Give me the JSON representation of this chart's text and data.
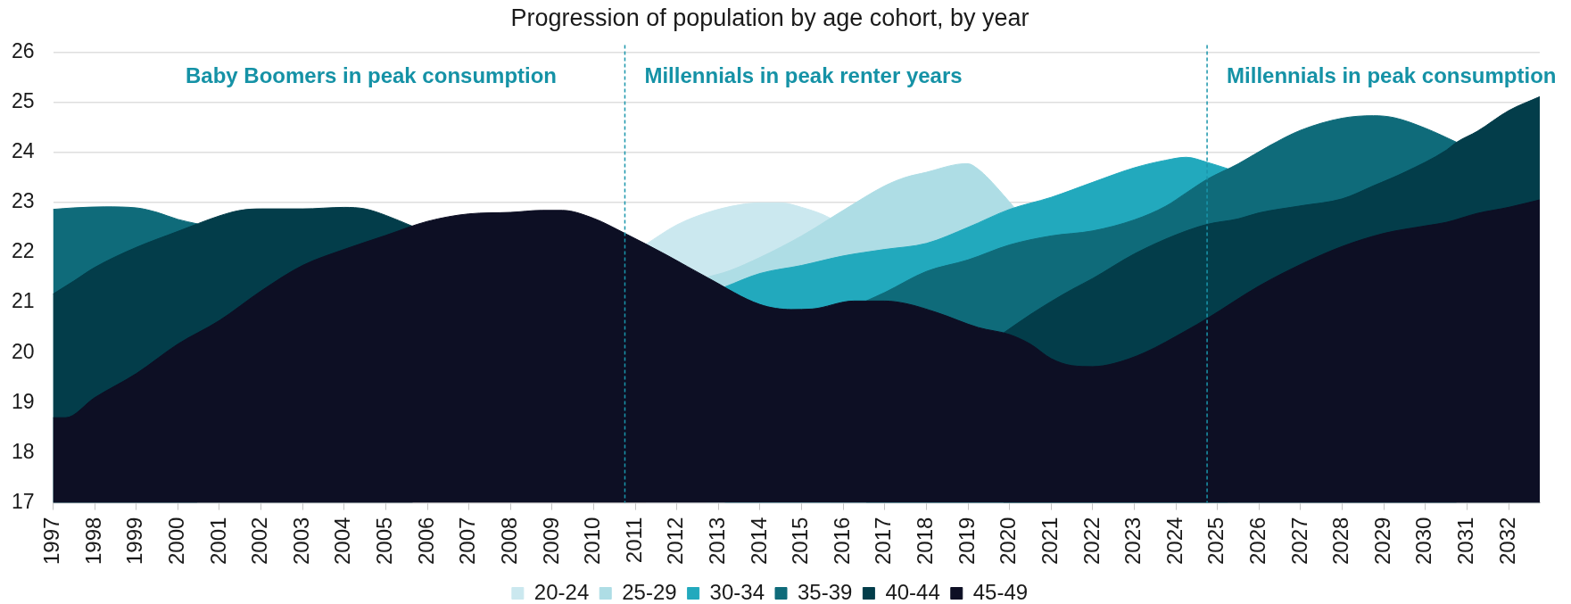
{
  "chart_data": {
    "type": "area",
    "title": "Progression of population by age cohort, by year",
    "xlim": [
      1997,
      2032.75
    ],
    "xticks": [
      1997,
      1998,
      1999,
      2000,
      2001,
      2002,
      2003,
      2004,
      2005,
      2006,
      2007,
      2008,
      2009,
      2010,
      2011,
      2012,
      2013,
      2014,
      2015,
      2016,
      2017,
      2018,
      2019,
      2020,
      2021,
      2022,
      2023,
      2024,
      2025,
      2026,
      2027,
      2028,
      2029,
      2030,
      2031,
      2032
    ],
    "ylim": [
      17,
      26
    ],
    "yticks": [
      17,
      18,
      19,
      20,
      21,
      22,
      23,
      24,
      25,
      26
    ],
    "grid": "y",
    "legend": "bottom",
    "series": [
      {
        "name": "20-24",
        "color": "#cbe8ef",
        "x": [
          2011.25,
          2012,
          2012.75,
          2013.5,
          2014,
          2014.5,
          2015,
          2015.5,
          2015.7
        ],
        "values": [
          22.16,
          22.55,
          22.8,
          22.95,
          22.99,
          22.99,
          22.9,
          22.76,
          22.68
        ]
      },
      {
        "name": "25-29",
        "color": "#aedde5",
        "x": [
          2012.7,
          2013.25,
          2014,
          2015,
          2016,
          2017,
          2017.5,
          2018,
          2018.75,
          2019,
          2019.25,
          2019.5,
          2019.85,
          2020.15
        ],
        "values": [
          21.5,
          21.63,
          21.9,
          22.33,
          22.84,
          23.33,
          23.5,
          23.6,
          23.76,
          23.77,
          23.66,
          23.47,
          23.15,
          22.86
        ]
      },
      {
        "name": "30-34",
        "color": "#22a9bd",
        "x": [
          2013.15,
          2014,
          2015,
          2016,
          2017,
          2018,
          2019,
          2020,
          2021,
          2022,
          2023,
          2023.75,
          2024.25,
          2024.75,
          2025.25
        ],
        "values": [
          21.31,
          21.58,
          21.74,
          21.93,
          22.06,
          22.18,
          22.5,
          22.86,
          23.1,
          23.4,
          23.69,
          23.84,
          23.9,
          23.8,
          23.67
        ]
      },
      {
        "name": "35-39",
        "color": "#0f6b7a",
        "x": [
          1997,
          1997.5,
          1998.25,
          1999,
          1999.5,
          2000,
          2000.47,
          2008,
          2016.55,
          2017,
          2018,
          2019,
          2020,
          2021,
          2022,
          2023,
          2023.75,
          2024.25,
          2024.75,
          2025.5,
          2026.25,
          2027,
          2028,
          2028.75,
          2029.25,
          2030,
          2030.75
        ],
        "values": [
          22.86,
          22.89,
          22.91,
          22.89,
          22.8,
          22.66,
          22.57,
          null,
          21.03,
          21.2,
          21.62,
          21.85,
          22.15,
          22.33,
          22.43,
          22.65,
          22.92,
          23.19,
          23.46,
          23.77,
          24.13,
          24.44,
          24.68,
          24.73,
          24.69,
          24.48,
          24.2
        ]
      },
      {
        "name": "40-44",
        "color": "#033d4a",
        "x": [
          1997,
          1997.5,
          1998,
          1999,
          2000,
          2000.5,
          2001,
          2001.5,
          2002,
          2003,
          2004,
          2004.5,
          2005,
          2005.65,
          2012,
          2019.85,
          2020.5,
          2021,
          2021.5,
          2022,
          2023,
          2024,
          2024.75,
          2025.5,
          2026,
          2027,
          2028,
          2028.75,
          2029.5,
          2030.5,
          2030.75,
          2031.25,
          2032,
          2032.75
        ],
        "values": [
          21.17,
          21.43,
          21.7,
          22.1,
          22.42,
          22.58,
          22.73,
          22.84,
          22.87,
          22.87,
          22.9,
          22.87,
          22.74,
          22.52,
          null,
          20.39,
          20.76,
          21.02,
          21.26,
          21.48,
          21.97,
          22.35,
          22.56,
          22.67,
          22.79,
          22.93,
          23.07,
          23.33,
          23.6,
          24.04,
          24.2,
          24.42,
          24.83,
          25.11
        ]
      },
      {
        "name": "45-49",
        "color": "#0d0f24",
        "x": [
          1997,
          1997.3,
          1998,
          1999,
          2000,
          2001,
          2002,
          2003,
          2004,
          2005,
          2006,
          2007,
          2008,
          2008.75,
          2009.25,
          2010,
          2010.75,
          2011.75,
          2012.75,
          2014,
          2014.75,
          2015.25,
          2016.25,
          2017,
          2017.5,
          2018.25,
          2019.25,
          2020,
          2020.5,
          2021,
          2021.5,
          2022,
          2022.5,
          2023.25,
          2024.25,
          2024.75,
          2026,
          2027,
          2028,
          2029,
          2030,
          2030.5,
          2031.25,
          2032,
          2032.75
        ],
        "values": [
          18.7,
          18.7,
          19.1,
          19.58,
          20.17,
          20.64,
          21.23,
          21.74,
          22.06,
          22.34,
          22.62,
          22.77,
          22.8,
          22.84,
          22.84,
          22.68,
          22.38,
          21.95,
          21.49,
          20.96,
          20.86,
          20.87,
          21.03,
          21.03,
          20.98,
          20.8,
          20.5,
          20.36,
          20.17,
          19.88,
          19.74,
          19.72,
          19.78,
          20.0,
          20.44,
          20.68,
          21.33,
          21.76,
          22.12,
          22.38,
          22.53,
          22.6,
          22.78,
          22.9,
          23.05
        ]
      }
    ],
    "ref_lines": [
      {
        "axis": "x",
        "value": 2010.75,
        "color": "#1a96ab",
        "line_style": "dashed"
      },
      {
        "axis": "x",
        "value": 2024.75,
        "color": "#1a96ab",
        "line_style": "dashed"
      }
    ],
    "annotations": [
      "Baby Boomers in peak consumption",
      "Millennials in peak renter years",
      "Millennials in peak consumption"
    ]
  }
}
